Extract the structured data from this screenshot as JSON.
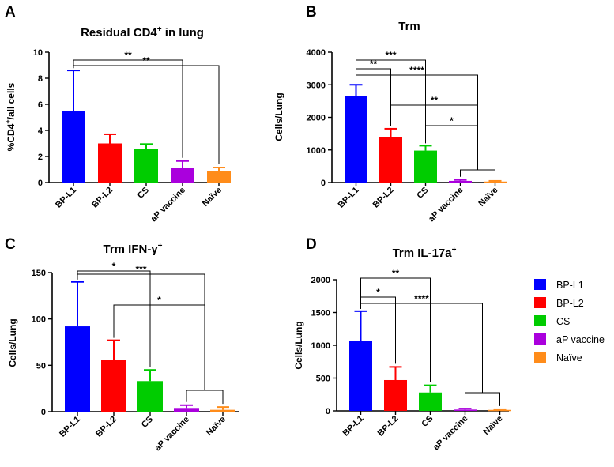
{
  "figure": {
    "legend": [
      {
        "label": "BP-L1",
        "color": "#0000ff"
      },
      {
        "label": "BP-L2",
        "color": "#ff0000"
      },
      {
        "label": "CS",
        "color": "#00cc00"
      },
      {
        "label": "aP vaccine",
        "color": "#aa00dd"
      },
      {
        "label": "Naïve",
        "color": "#ff8c1a"
      }
    ]
  },
  "chart_data": [
    {
      "panel": "A",
      "type": "bar",
      "title": "Residual CD4",
      "title_sup": "+",
      "title_suffix": " in lung",
      "ylabel": "%CD4",
      "ylabel_sup": "+",
      "ylabel_suffix": "/all cells",
      "ylim": [
        0,
        10
      ],
      "yticks": [
        0,
        2,
        4,
        6,
        8,
        10
      ],
      "categories": [
        "BP-L1",
        "BP-L2",
        "CS",
        "aP vaccine",
        "Naïve"
      ],
      "values": [
        5.5,
        3.0,
        2.6,
        1.1,
        0.9
      ],
      "errors": [
        3.1,
        0.7,
        0.35,
        0.55,
        0.25
      ],
      "significance": [
        {
          "from": 0,
          "to": 3,
          "label": "**"
        },
        {
          "from": 0,
          "to": 4,
          "label": "**"
        }
      ]
    },
    {
      "panel": "B",
      "type": "bar",
      "title": "Trm",
      "ylabel": "Cells/Lung",
      "ylim": [
        0,
        4000
      ],
      "yticks": [
        0,
        1000,
        2000,
        3000,
        4000
      ],
      "categories": [
        "BP-L1",
        "BP-L2",
        "CS",
        "aP vaccine",
        "Naïve"
      ],
      "values": [
        2650,
        1400,
        980,
        50,
        30
      ],
      "errors": [
        350,
        250,
        150,
        30,
        20
      ],
      "significance": [
        {
          "from": 0,
          "to": 1,
          "label": "**"
        },
        {
          "from": 0,
          "to": 2,
          "label": "***"
        },
        {
          "from": 0,
          "to": "group",
          "label": "****"
        },
        {
          "from": 1,
          "to": "group",
          "label": "**"
        },
        {
          "from": 2,
          "to": "group",
          "label": "*"
        }
      ]
    },
    {
      "panel": "C",
      "type": "bar",
      "title": "Trm  IFN-γ",
      "title_sup": "+",
      "ylabel": "Cells/Lung",
      "ylim": [
        0,
        150
      ],
      "yticks": [
        0,
        50,
        100,
        150
      ],
      "categories": [
        "BP-L1",
        "BP-L2",
        "CS",
        "aP vaccine",
        "Naïve"
      ],
      "values": [
        92,
        56,
        33,
        4,
        2
      ],
      "errors": [
        48,
        21,
        12,
        3,
        3
      ],
      "significance": [
        {
          "from": 0,
          "to": 2,
          "label": "*"
        },
        {
          "from": 0,
          "to": "group",
          "label": "***"
        },
        {
          "from": 1,
          "to": "group",
          "label": "*"
        }
      ]
    },
    {
      "panel": "D",
      "type": "bar",
      "title": "Trm  IL-17a",
      "title_sup": "+",
      "ylabel": "Cells/Lung",
      "ylim": [
        0,
        2000
      ],
      "yticks": [
        0,
        500,
        1000,
        1500,
        2000
      ],
      "categories": [
        "BP-L1",
        "BP-L2",
        "CS",
        "aP vaccine",
        "Naïve"
      ],
      "values": [
        1070,
        470,
        280,
        20,
        15
      ],
      "errors": [
        450,
        200,
        110,
        15,
        10
      ],
      "significance": [
        {
          "from": 0,
          "to": 1,
          "label": "*"
        },
        {
          "from": 0,
          "to": 2,
          "label": "**"
        },
        {
          "from": 0,
          "to": "group",
          "label": "****"
        }
      ]
    }
  ]
}
